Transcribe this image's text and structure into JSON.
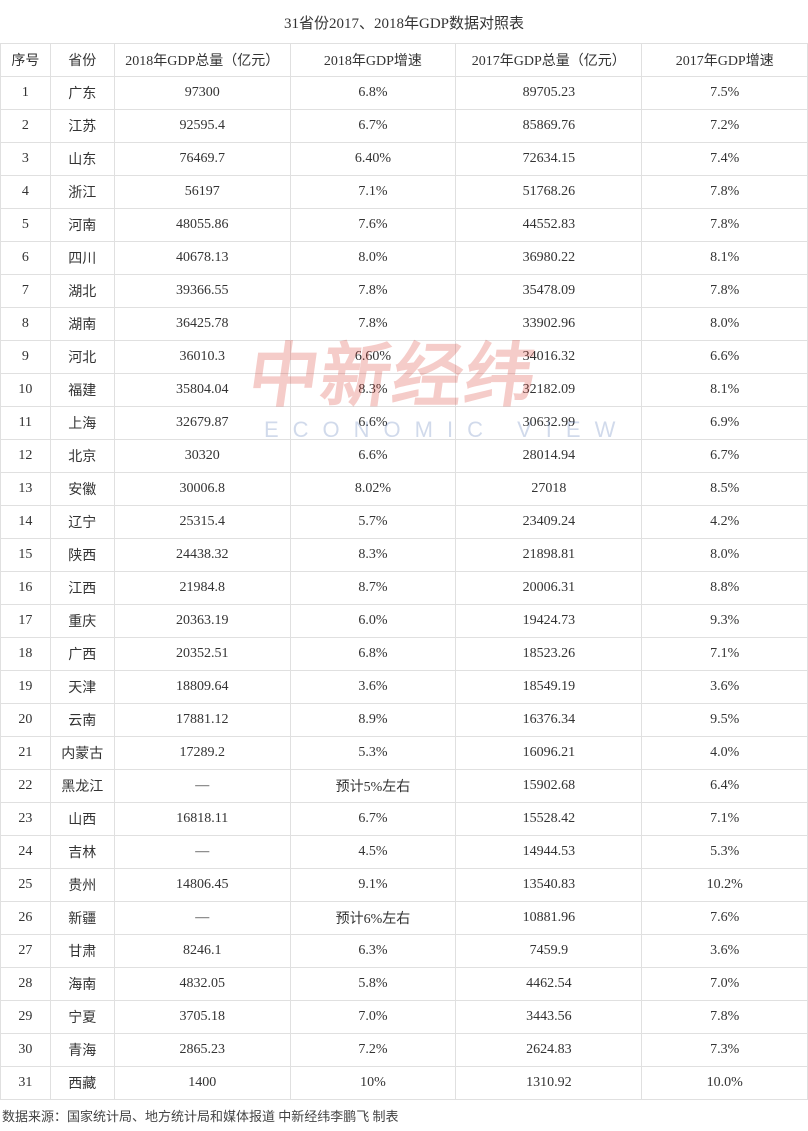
{
  "title": "31省份2017、2018年GDP数据对照表",
  "columns": [
    "序号",
    "省份",
    "2018年GDP总量（亿元）",
    "2018年GDP增速",
    "2017年GDP总量（亿元）",
    "2017年GDP增速"
  ],
  "rows": [
    [
      "1",
      "广东",
      "97300",
      "6.8%",
      "89705.23",
      "7.5%"
    ],
    [
      "2",
      "江苏",
      "92595.4",
      "6.7%",
      "85869.76",
      "7.2%"
    ],
    [
      "3",
      "山东",
      "76469.7",
      "6.40%",
      "72634.15",
      "7.4%"
    ],
    [
      "4",
      "浙江",
      "56197",
      "7.1%",
      "51768.26",
      "7.8%"
    ],
    [
      "5",
      "河南",
      "48055.86",
      "7.6%",
      "44552.83",
      "7.8%"
    ],
    [
      "6",
      "四川",
      "40678.13",
      "8.0%",
      "36980.22",
      "8.1%"
    ],
    [
      "7",
      "湖北",
      "39366.55",
      "7.8%",
      "35478.09",
      "7.8%"
    ],
    [
      "8",
      "湖南",
      "36425.78",
      "7.8%",
      "33902.96",
      "8.0%"
    ],
    [
      "9",
      "河北",
      "36010.3",
      "6.60%",
      "34016.32",
      "6.6%"
    ],
    [
      "10",
      "福建",
      "35804.04",
      "8.3%",
      "32182.09",
      "8.1%"
    ],
    [
      "11",
      "上海",
      "32679.87",
      "6.6%",
      "30632.99",
      "6.9%"
    ],
    [
      "12",
      "北京",
      "30320",
      "6.6%",
      "28014.94",
      "6.7%"
    ],
    [
      "13",
      "安徽",
      "30006.8",
      "8.02%",
      "27018",
      "8.5%"
    ],
    [
      "14",
      "辽宁",
      "25315.4",
      "5.7%",
      "23409.24",
      "4.2%"
    ],
    [
      "15",
      "陕西",
      "24438.32",
      "8.3%",
      "21898.81",
      "8.0%"
    ],
    [
      "16",
      "江西",
      "21984.8",
      "8.7%",
      "20006.31",
      "8.8%"
    ],
    [
      "17",
      "重庆",
      "20363.19",
      "6.0%",
      "19424.73",
      "9.3%"
    ],
    [
      "18",
      "广西",
      "20352.51",
      "6.8%",
      "18523.26",
      "7.1%"
    ],
    [
      "19",
      "天津",
      "18809.64",
      "3.6%",
      "18549.19",
      "3.6%"
    ],
    [
      "20",
      "云南",
      "17881.12",
      "8.9%",
      "16376.34",
      "9.5%"
    ],
    [
      "21",
      "内蒙古",
      "17289.2",
      "5.3%",
      "16096.21",
      "4.0%"
    ],
    [
      "22",
      "黑龙江",
      "—",
      "预计5%左右",
      "15902.68",
      "6.4%"
    ],
    [
      "23",
      "山西",
      "16818.11",
      "6.7%",
      "15528.42",
      "7.1%"
    ],
    [
      "24",
      "吉林",
      "—",
      "4.5%",
      "14944.53",
      "5.3%"
    ],
    [
      "25",
      "贵州",
      "14806.45",
      "9.1%",
      "13540.83",
      "10.2%"
    ],
    [
      "26",
      "新疆",
      "—",
      "预计6%左右",
      "10881.96",
      "7.6%"
    ],
    [
      "27",
      "甘肃",
      "8246.1",
      "6.3%",
      "7459.9",
      "3.6%"
    ],
    [
      "28",
      "海南",
      "4832.05",
      "5.8%",
      "4462.54",
      "7.0%"
    ],
    [
      "29",
      "宁夏",
      "3705.18",
      "7.0%",
      "3443.56",
      "7.8%"
    ],
    [
      "30",
      "青海",
      "2865.23",
      "7.2%",
      "2624.83",
      "7.3%"
    ],
    [
      "31",
      "西藏",
      "1400",
      "10%",
      "1310.92",
      "10.0%"
    ]
  ],
  "footer": "数据来源：国家统计局、地方统计局和媒体报道  中新经纬李鹏飞 制表",
  "watermark": {
    "cn": "中新经纬",
    "en": "ECONOMIC VIEW"
  },
  "colors": {
    "border": "#e0e0e0",
    "text": "#333333",
    "wm_red": "#d83a2e",
    "wm_blue": "#4a6fb3",
    "background": "#ffffff"
  }
}
